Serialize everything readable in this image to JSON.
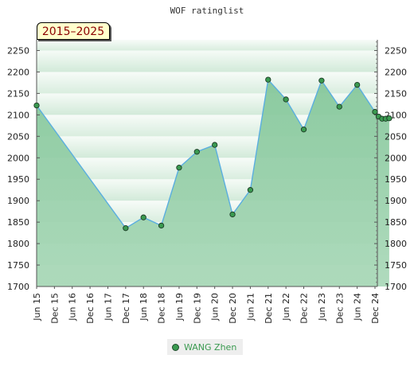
{
  "chart_data": {
    "type": "area",
    "title": "WOF ratinglist",
    "range_label": "2015–2025",
    "x_labels": [
      "Jun 15",
      "Dec 15",
      "Jun 16",
      "Dec 16",
      "Jun 17",
      "Dec 17",
      "Jun 18",
      "Dec 18",
      "Jun 19",
      "Dec 19",
      "Jun 20",
      "Dec 20",
      "Jun 21",
      "Dec 21",
      "Jun 22",
      "Dec 22",
      "Jun 23",
      "Dec 23",
      "Jun 24",
      "Dec 24"
    ],
    "y_ticks": [
      1700,
      1750,
      1800,
      1850,
      1900,
      1950,
      2000,
      2050,
      2100,
      2150,
      2200,
      2250
    ],
    "ylim": [
      1700,
      2275
    ],
    "grid": true,
    "legend_position": "bottom",
    "series": [
      {
        "name": "WANG Zhen",
        "color": "#3a9a50",
        "line_color": "#5aaee0",
        "points": [
          {
            "x": 0.0,
            "y": 2122
          },
          {
            "x": 5.0,
            "y": 1836
          },
          {
            "x": 6.0,
            "y": 1861
          },
          {
            "x": 7.0,
            "y": 1842
          },
          {
            "x": 8.0,
            "y": 1977
          },
          {
            "x": 9.0,
            "y": 2014
          },
          {
            "x": 10.0,
            "y": 2030
          },
          {
            "x": 11.0,
            "y": 1868
          },
          {
            "x": 12.0,
            "y": 1925
          },
          {
            "x": 13.0,
            "y": 2182
          },
          {
            "x": 14.0,
            "y": 2136
          },
          {
            "x": 15.0,
            "y": 2066
          },
          {
            "x": 16.0,
            "y": 2180
          },
          {
            "x": 17.0,
            "y": 2119
          },
          {
            "x": 18.0,
            "y": 2170
          },
          {
            "x": 19.0,
            "y": 2107
          },
          {
            "x": 19.2,
            "y": 2096
          },
          {
            "x": 19.4,
            "y": 2091
          },
          {
            "x": 19.6,
            "y": 2091
          },
          {
            "x": 19.8,
            "y": 2092
          }
        ]
      }
    ]
  }
}
